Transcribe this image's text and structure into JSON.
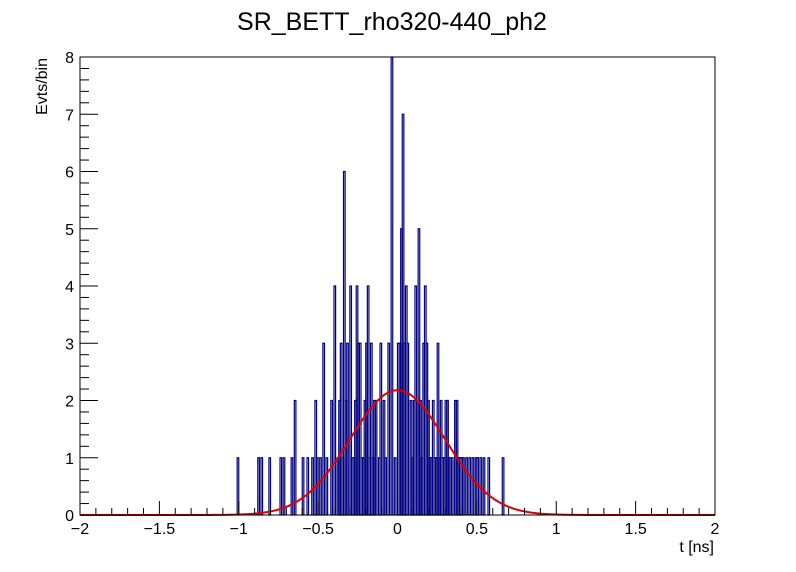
{
  "chart_data": {
    "type": "histogram",
    "title": "SR_BETT_rho320-440_ph2",
    "xlabel": "t [ns]",
    "ylabel": "Evts/bin",
    "xlim": [
      -2,
      2
    ],
    "ylim": [
      0,
      8
    ],
    "x_ticks": [
      -2,
      -1.5,
      -1,
      -0.5,
      0,
      0.5,
      1,
      1.5,
      2
    ],
    "x_tick_labels": [
      "−2",
      "−1.5",
      "−1",
      "−0.5",
      "0",
      "0.5",
      "1",
      "1.5",
      "2"
    ],
    "y_ticks": [
      0,
      1,
      2,
      3,
      4,
      5,
      6,
      7,
      8
    ],
    "y_tick_labels": [
      "0",
      "1",
      "2",
      "3",
      "4",
      "5",
      "6",
      "7",
      "8"
    ],
    "bin_width": 0.01,
    "bin_centers": [
      -1.005,
      -0.875,
      -0.855,
      -0.805,
      -0.735,
      -0.715,
      -0.665,
      -0.645,
      -0.595,
      -0.565,
      -0.535,
      -0.515,
      -0.505,
      -0.485,
      -0.465,
      -0.445,
      -0.415,
      -0.395,
      -0.375,
      -0.365,
      -0.355,
      -0.345,
      -0.335,
      -0.325,
      -0.315,
      -0.295,
      -0.285,
      -0.275,
      -0.265,
      -0.255,
      -0.245,
      -0.235,
      -0.225,
      -0.215,
      -0.205,
      -0.195,
      -0.185,
      -0.175,
      -0.165,
      -0.155,
      -0.145,
      -0.135,
      -0.115,
      -0.105,
      -0.085,
      -0.075,
      -0.055,
      -0.035,
      -0.015,
      0.005,
      0.015,
      0.025,
      0.035,
      0.045,
      0.055,
      0.065,
      0.085,
      0.095,
      0.105,
      0.115,
      0.125,
      0.135,
      0.145,
      0.155,
      0.165,
      0.175,
      0.185,
      0.195,
      0.205,
      0.215,
      0.225,
      0.235,
      0.245,
      0.255,
      0.265,
      0.275,
      0.285,
      0.295,
      0.305,
      0.315,
      0.325,
      0.335,
      0.345,
      0.365,
      0.375,
      0.385,
      0.395,
      0.405,
      0.415,
      0.435,
      0.455,
      0.475,
      0.495,
      0.505,
      0.525,
      0.545,
      0.575,
      0.665
    ],
    "counts": [
      1,
      1,
      1,
      1,
      1,
      1,
      1,
      2,
      1,
      1,
      1,
      2,
      1,
      1,
      3,
      1,
      2,
      4,
      1,
      2,
      3,
      1,
      6,
      2,
      3,
      4,
      1,
      1,
      2,
      4,
      3,
      3,
      1,
      1,
      2,
      3,
      4,
      1,
      3,
      1,
      2,
      2,
      1,
      3,
      2,
      1,
      3,
      8,
      1,
      3,
      3,
      5,
      7,
      3,
      4,
      3,
      2,
      1,
      2,
      4,
      2,
      5,
      2,
      1,
      3,
      4,
      3,
      2,
      1,
      1,
      2,
      1,
      1,
      3,
      1,
      2,
      1,
      1,
      2,
      2,
      1,
      1,
      1,
      2,
      2,
      1,
      1,
      1,
      1,
      1,
      1,
      1,
      1,
      1,
      1,
      1,
      1,
      1
    ],
    "series": [
      {
        "name": "histogram",
        "color": "#000080"
      },
      {
        "name": "gaussian fit",
        "color": "#e00000",
        "amplitude": 2.18,
        "mean": 0.0,
        "sigma": 0.3
      }
    ]
  }
}
